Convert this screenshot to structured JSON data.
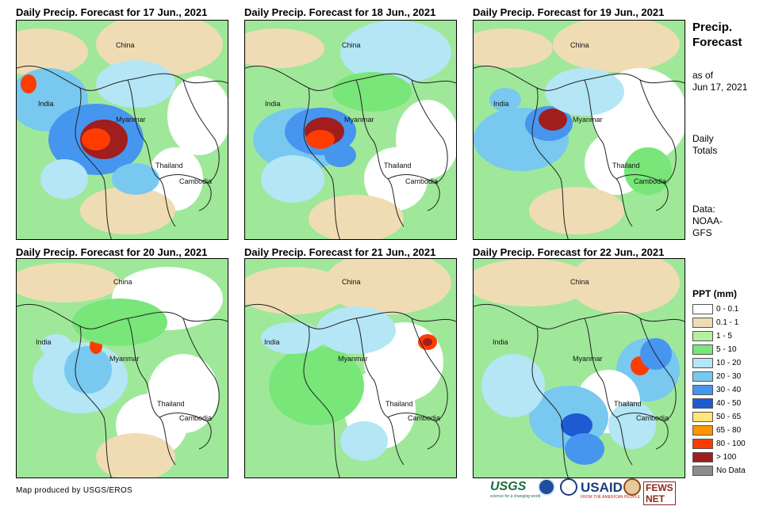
{
  "panels": [
    {
      "title": "Daily Precip. Forecast for 17 Jun., 2021",
      "labels": {
        "china": "China",
        "india": "India",
        "myanmar": "Myanmar",
        "thailand": "Thailand",
        "cambodia": "Cambodia"
      }
    },
    {
      "title": "Daily Precip. Forecast for 18 Jun., 2021",
      "labels": {
        "china": "China",
        "india": "India",
        "myanmar": "Myanmar",
        "thailand": "Thailand",
        "cambodia": "Cambodia"
      }
    },
    {
      "title": "Daily Precip. Forecast for 19 Jun., 2021",
      "labels": {
        "china": "China",
        "india": "India",
        "myanmar": "Myanmar",
        "thailand": "Thailand",
        "cambodia": "Cambodia"
      }
    },
    {
      "title": "Daily Precip. Forecast for 20 Jun., 2021",
      "labels": {
        "china": "China",
        "india": "India",
        "myanmar": "Myanmar",
        "thailand": "Thailand",
        "cambodia": "Cambodia"
      }
    },
    {
      "title": "Daily Precip. Forecast for 21 Jun., 2021",
      "labels": {
        "china": "China",
        "india": "India",
        "myanmar": "Myanmar",
        "thailand": "Thailand",
        "cambodia": "Cambodia"
      }
    },
    {
      "title": "Daily Precip. Forecast for 22 Jun., 2021",
      "labels": {
        "china": "China",
        "india": "India",
        "myanmar": "Myanmar",
        "thailand": "Thailand",
        "cambodia": "Cambodia"
      }
    }
  ],
  "sidebar": {
    "title_line1": "Precip.",
    "title_line2": "Forecast",
    "asof_line1": "as of",
    "asof_line2": "Jun 17, 2021",
    "totals_line1": "Daily",
    "totals_line2": "Totals",
    "data_line1": "Data:",
    "data_line2": "NOAA-",
    "data_line3": "GFS"
  },
  "legend": {
    "title": "PPT (mm)",
    "items": [
      {
        "label": "0 - 0.1",
        "color": "#ffffff"
      },
      {
        "label": "0.1 - 1",
        "color": "#f0dcb4"
      },
      {
        "label": "1 - 5",
        "color": "#b4f0a0"
      },
      {
        "label": "5 - 10",
        "color": "#78e678"
      },
      {
        "label": "10 - 20",
        "color": "#b4e6f5"
      },
      {
        "label": "20 - 30",
        "color": "#78c8f0"
      },
      {
        "label": "30 - 40",
        "color": "#4696f0"
      },
      {
        "label": "40 - 50",
        "color": "#1e5ad2"
      },
      {
        "label": "50 - 65",
        "color": "#ffe678"
      },
      {
        "label": "65 - 80",
        "color": "#ff9600"
      },
      {
        "label": "80 - 100",
        "color": "#ff3c00"
      },
      {
        "label": "> 100",
        "color": "#a01e1e"
      },
      {
        "label": "No Data",
        "color": "#8c8c8c"
      }
    ]
  },
  "footer": {
    "credit": "Map produced by USGS/EROS"
  },
  "logos": {
    "usgs": "USGS",
    "usgs_tagline": "science for a changing world",
    "usaid": "USAID",
    "usaid_tagline": "FROM THE AMERICAN PEOPLE",
    "fews": "FEWS NET"
  }
}
